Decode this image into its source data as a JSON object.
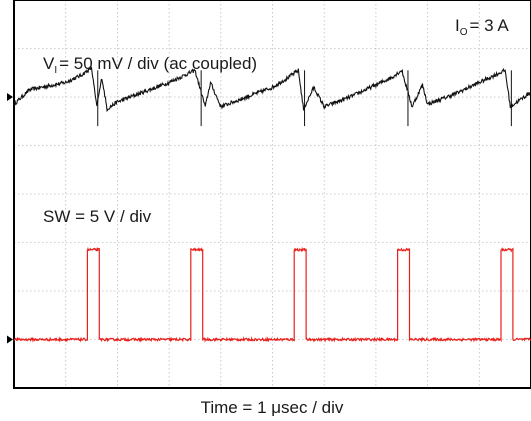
{
  "chart_data": {
    "type": "line",
    "xlabel": "Time = 1 μsec / div",
    "x_divisions": 10,
    "y_divisions": 8,
    "grid": true,
    "annotations": {
      "output_current": {
        "symbol": "I",
        "subscript": "O",
        "value": "= 3 A"
      },
      "ch1_scale": {
        "symbol": "V",
        "subscript": "I",
        "value": "= 50 mV / div (ac coupled)"
      },
      "ch2_scale": "SW = 5 V / div"
    },
    "series": [
      {
        "name": "V_I (ac coupled)",
        "color": "#111111",
        "ground_marker_div": 6.0,
        "x_div": [
          0.0,
          0.3,
          1.0,
          1.3,
          1.5,
          1.6,
          1.7,
          1.8,
          2.0,
          2.5,
          3.0,
          3.3,
          3.5,
          3.7,
          3.8,
          4.0,
          4.5,
          5.0,
          5.3,
          5.5,
          5.6,
          5.8,
          6.0,
          6.5,
          7.0,
          7.3,
          7.5,
          7.7,
          7.9,
          8.0,
          8.5,
          9.0,
          9.3,
          9.5,
          9.6,
          9.8,
          10.0
        ],
        "y_div": [
          5.85,
          6.15,
          6.3,
          6.45,
          6.6,
          5.8,
          6.4,
          5.75,
          5.9,
          6.1,
          6.3,
          6.45,
          6.55,
          5.8,
          6.3,
          5.8,
          6.0,
          6.2,
          6.4,
          6.55,
          5.75,
          6.2,
          5.8,
          6.0,
          6.25,
          6.4,
          6.55,
          5.8,
          6.25,
          5.85,
          6.05,
          6.3,
          6.45,
          6.55,
          5.8,
          5.95,
          6.1
        ]
      },
      {
        "name": "SW",
        "color": "#e8211c",
        "ground_marker_div": 1.0,
        "pulse_low_div": 1.0,
        "pulse_high_div": 2.85,
        "pulse_windows_div": [
          [
            1.42,
            1.65
          ],
          [
            3.42,
            3.65
          ],
          [
            5.42,
            5.65
          ],
          [
            7.42,
            7.65
          ],
          [
            9.42,
            9.65
          ]
        ]
      }
    ]
  }
}
